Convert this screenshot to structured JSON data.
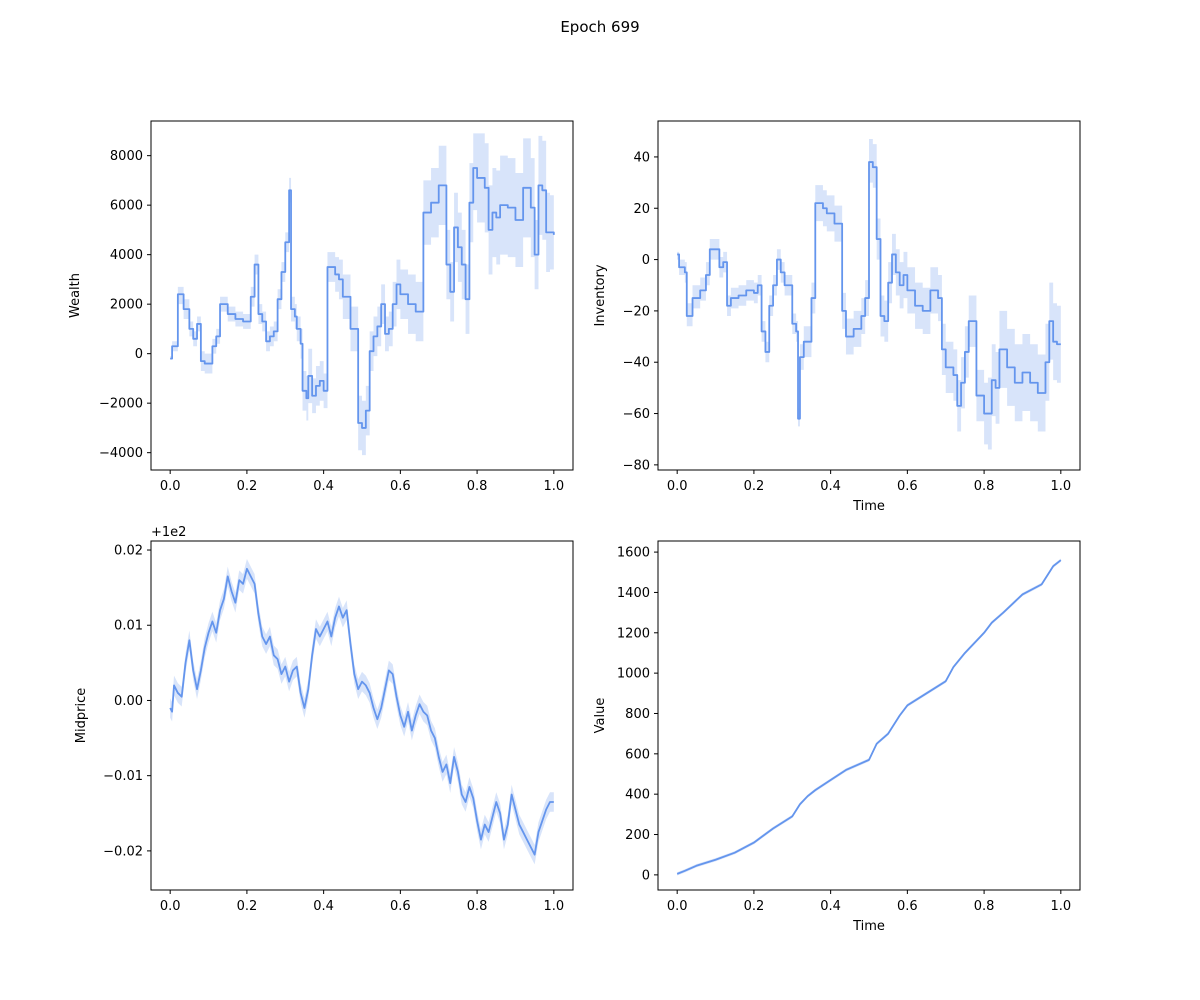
{
  "figure": {
    "suptitle": "Epoch 699",
    "line_color": "#6495ED",
    "band_color": "#6495ED",
    "band_opacity": 0.25
  },
  "chart_data": [
    {
      "type": "line",
      "ylabel": "Wealth",
      "xlabel": "",
      "offset_text": "",
      "xlim": [
        -0.05,
        1.05
      ],
      "ylim": [
        -4700,
        9400
      ],
      "x_ticks": [
        0.0,
        0.2,
        0.4,
        0.6,
        0.8,
        1.0
      ],
      "x_tick_labels": [
        "0.0",
        "0.2",
        "0.4",
        "0.6",
        "0.8",
        "1.0"
      ],
      "y_ticks": [
        -4000,
        -2000,
        0,
        2000,
        4000,
        6000,
        8000
      ],
      "y_tick_labels": [
        "−4000",
        "−2000",
        "0",
        "2000",
        "4000",
        "6000",
        "8000"
      ],
      "grid": false,
      "series": [
        {
          "step": true,
          "x": [
            0.0,
            0.005,
            0.02,
            0.035,
            0.05,
            0.06,
            0.07,
            0.08,
            0.09,
            0.11,
            0.12,
            0.13,
            0.15,
            0.17,
            0.19,
            0.21,
            0.22,
            0.23,
            0.24,
            0.25,
            0.26,
            0.27,
            0.28,
            0.29,
            0.3,
            0.31,
            0.315,
            0.325,
            0.33,
            0.34,
            0.345,
            0.355,
            0.36,
            0.37,
            0.38,
            0.39,
            0.4,
            0.41,
            0.43,
            0.44,
            0.45,
            0.47,
            0.49,
            0.5,
            0.51,
            0.52,
            0.53,
            0.54,
            0.55,
            0.56,
            0.57,
            0.58,
            0.59,
            0.6,
            0.62,
            0.64,
            0.66,
            0.68,
            0.7,
            0.72,
            0.73,
            0.74,
            0.75,
            0.76,
            0.77,
            0.78,
            0.79,
            0.8,
            0.82,
            0.83,
            0.84,
            0.85,
            0.86,
            0.88,
            0.9,
            0.92,
            0.94,
            0.95,
            0.96,
            0.97,
            0.98,
            0.99,
            1.0
          ],
          "y": [
            -200,
            300,
            2400,
            1800,
            1000,
            600,
            1200,
            -300,
            -400,
            300,
            700,
            2000,
            1600,
            1400,
            1300,
            2300,
            3600,
            1600,
            1300,
            500,
            700,
            900,
            2200,
            3300,
            4500,
            6600,
            1800,
            1500,
            1000,
            400,
            -1500,
            -1800,
            -900,
            -1700,
            -1300,
            -1100,
            -1500,
            3500,
            3200,
            3000,
            2300,
            1000,
            -2800,
            -3000,
            -2300,
            100,
            700,
            1100,
            2000,
            800,
            1000,
            2000,
            2800,
            2400,
            2000,
            1700,
            5700,
            6100,
            6800,
            3600,
            2500,
            5100,
            4300,
            3600,
            2200,
            6100,
            7500,
            7100,
            6700,
            5000,
            5700,
            5500,
            6000,
            5900,
            5400,
            6700,
            5900,
            4000,
            6800,
            6600,
            4900,
            4900,
            4800
          ],
          "lower": [
            -200,
            100,
            2000,
            1400,
            700,
            300,
            900,
            -700,
            -800,
            0,
            400,
            1700,
            1300,
            1100,
            1000,
            1900,
            3200,
            1200,
            900,
            100,
            300,
            500,
            1800,
            2900,
            4100,
            6100,
            1300,
            1000,
            500,
            -200,
            -2300,
            -2700,
            -2000,
            -2400,
            -2100,
            -1900,
            -2200,
            2900,
            2500,
            2200,
            1400,
            100,
            -3900,
            -4100,
            -3300,
            -700,
            -100,
            300,
            1200,
            100,
            300,
            1100,
            1800,
            1400,
            800,
            500,
            4400,
            4700,
            5200,
            2200,
            1300,
            3700,
            2900,
            2200,
            800,
            4500,
            5800,
            5300,
            4900,
            3200,
            3900,
            3600,
            4000,
            3900,
            3500,
            4700,
            3900,
            2600,
            4800,
            4600,
            3300,
            3400,
            3300
          ],
          "upper": [
            -100,
            500,
            2700,
            2200,
            1300,
            900,
            1500,
            100,
            0,
            600,
            1000,
            2300,
            1900,
            1700,
            1600,
            2700,
            4000,
            2000,
            1700,
            900,
            1100,
            1300,
            2600,
            3700,
            4900,
            7100,
            2300,
            2000,
            1500,
            1000,
            -700,
            -900,
            200,
            -1000,
            -500,
            -300,
            -800,
            4100,
            3900,
            3800,
            3200,
            1900,
            -1700,
            -1900,
            -1300,
            900,
            1500,
            1900,
            2800,
            1500,
            1700,
            2900,
            3800,
            3400,
            3200,
            2900,
            7000,
            7500,
            8400,
            5000,
            3700,
            6500,
            5700,
            5000,
            3600,
            7700,
            8900,
            8900,
            8500,
            6800,
            7500,
            7400,
            8000,
            7900,
            7300,
            8700,
            7900,
            5400,
            8800,
            8600,
            6500,
            6400,
            6300
          ]
        }
      ]
    },
    {
      "type": "line",
      "ylabel": "Inventory",
      "xlabel": "Time",
      "offset_text": "",
      "xlim": [
        -0.05,
        1.05
      ],
      "ylim": [
        -82,
        54
      ],
      "x_ticks": [
        0.0,
        0.2,
        0.4,
        0.6,
        0.8,
        1.0
      ],
      "x_tick_labels": [
        "0.0",
        "0.2",
        "0.4",
        "0.6",
        "0.8",
        "1.0"
      ],
      "y_ticks": [
        -80,
        -60,
        -40,
        -20,
        0,
        20,
        40
      ],
      "y_tick_labels": [
        "−80",
        "−60",
        "−40",
        "−20",
        "0",
        "20",
        "40"
      ],
      "grid": false,
      "series": [
        {
          "step": true,
          "x": [
            0.0,
            0.005,
            0.02,
            0.025,
            0.04,
            0.06,
            0.075,
            0.085,
            0.09,
            0.11,
            0.12,
            0.13,
            0.14,
            0.16,
            0.18,
            0.2,
            0.21,
            0.22,
            0.23,
            0.24,
            0.25,
            0.26,
            0.27,
            0.28,
            0.3,
            0.31,
            0.315,
            0.32,
            0.33,
            0.35,
            0.36,
            0.38,
            0.39,
            0.41,
            0.43,
            0.44,
            0.46,
            0.48,
            0.49,
            0.5,
            0.51,
            0.52,
            0.53,
            0.54,
            0.55,
            0.56,
            0.57,
            0.58,
            0.59,
            0.6,
            0.62,
            0.64,
            0.66,
            0.68,
            0.69,
            0.7,
            0.72,
            0.73,
            0.74,
            0.75,
            0.76,
            0.78,
            0.8,
            0.81,
            0.82,
            0.83,
            0.84,
            0.86,
            0.88,
            0.9,
            0.92,
            0.94,
            0.96,
            0.97,
            0.98,
            0.99,
            1.0
          ],
          "y": [
            2,
            -3,
            -5,
            -22,
            -15,
            -12,
            -6,
            4,
            4,
            -3,
            -1,
            -18,
            -15,
            -14,
            -12,
            -13,
            -10,
            -28,
            -36,
            -18,
            -10,
            0,
            -5,
            -10,
            -25,
            -28,
            -62,
            -38,
            -32,
            -15,
            22,
            20,
            18,
            14,
            -20,
            -30,
            -27,
            -22,
            -15,
            38,
            36,
            8,
            -22,
            -24,
            -9,
            2,
            -5,
            -10,
            -6,
            -12,
            -18,
            -20,
            -12,
            -15,
            -35,
            -42,
            -45,
            -57,
            -48,
            -36,
            -24,
            -53,
            -60,
            -60,
            -47,
            -50,
            -35,
            -42,
            -48,
            -44,
            -48,
            -52,
            -40,
            -24,
            -32,
            -33,
            -33
          ],
          "lower": [
            0,
            -6,
            -9,
            -26,
            -19,
            -16,
            -10,
            0,
            0,
            -7,
            -5,
            -22,
            -19,
            -18,
            -16,
            -17,
            -14,
            -32,
            -40,
            -22,
            -14,
            -4,
            -9,
            -14,
            -29,
            -32,
            -65,
            -43,
            -38,
            -21,
            15,
            13,
            11,
            7,
            -27,
            -37,
            -34,
            -29,
            -22,
            30,
            28,
            0,
            -30,
            -32,
            -17,
            -6,
            -14,
            -19,
            -15,
            -21,
            -27,
            -29,
            -21,
            -24,
            -45,
            -52,
            -55,
            -67,
            -58,
            -46,
            -34,
            -63,
            -72,
            -74,
            -61,
            -64,
            -50,
            -57,
            -63,
            -59,
            -63,
            -67,
            -55,
            -39,
            -47,
            -48,
            -48
          ],
          "upper": [
            3,
            0,
            -1,
            -17,
            -10,
            -7,
            -1,
            8,
            8,
            1,
            3,
            -14,
            -11,
            -10,
            -8,
            -9,
            -6,
            -24,
            -32,
            -14,
            -6,
            4,
            -1,
            -6,
            -21,
            -24,
            -58,
            -33,
            -26,
            -9,
            29,
            27,
            25,
            21,
            -13,
            -23,
            -20,
            -15,
            -8,
            47,
            45,
            16,
            -14,
            -16,
            -1,
            10,
            4,
            -1,
            3,
            -3,
            -9,
            -11,
            -3,
            -6,
            -25,
            -32,
            -35,
            -47,
            -38,
            -26,
            -14,
            -43,
            -48,
            -46,
            -33,
            -36,
            -20,
            -27,
            -33,
            -29,
            -33,
            -37,
            -25,
            -9,
            -17,
            -18,
            -18
          ]
        }
      ]
    },
    {
      "type": "line",
      "ylabel": "Midprice",
      "xlabel": "",
      "offset_text": "+1e2",
      "xlim": [
        -0.05,
        1.05
      ],
      "ylim": [
        -0.0252,
        0.0212
      ],
      "x_ticks": [
        0.0,
        0.2,
        0.4,
        0.6,
        0.8,
        1.0
      ],
      "x_tick_labels": [
        "0.0",
        "0.2",
        "0.4",
        "0.6",
        "0.8",
        "1.0"
      ],
      "y_ticks": [
        -0.02,
        -0.01,
        0.0,
        0.01,
        0.02
      ],
      "y_tick_labels": [
        "−0.02",
        "−0.01",
        "0.00",
        "0.01",
        "0.02"
      ],
      "grid": false,
      "series": [
        {
          "step": false,
          "band_halfwidth": 0.0013,
          "x": [
            0.0,
            0.005,
            0.01,
            0.02,
            0.03,
            0.04,
            0.05,
            0.06,
            0.07,
            0.08,
            0.09,
            0.1,
            0.11,
            0.12,
            0.13,
            0.14,
            0.15,
            0.16,
            0.17,
            0.18,
            0.19,
            0.2,
            0.21,
            0.22,
            0.23,
            0.24,
            0.25,
            0.26,
            0.27,
            0.28,
            0.29,
            0.3,
            0.31,
            0.32,
            0.33,
            0.34,
            0.35,
            0.36,
            0.37,
            0.38,
            0.39,
            0.4,
            0.41,
            0.42,
            0.43,
            0.44,
            0.45,
            0.46,
            0.47,
            0.48,
            0.49,
            0.5,
            0.51,
            0.52,
            0.53,
            0.54,
            0.55,
            0.56,
            0.57,
            0.58,
            0.59,
            0.6,
            0.61,
            0.62,
            0.63,
            0.64,
            0.65,
            0.66,
            0.67,
            0.68,
            0.69,
            0.7,
            0.71,
            0.72,
            0.73,
            0.74,
            0.75,
            0.76,
            0.77,
            0.78,
            0.79,
            0.8,
            0.81,
            0.82,
            0.83,
            0.84,
            0.85,
            0.86,
            0.87,
            0.88,
            0.89,
            0.9,
            0.91,
            0.92,
            0.93,
            0.94,
            0.95,
            0.96,
            0.97,
            0.98,
            0.99,
            1.0
          ],
          "y": [
            -0.001,
            -0.0015,
            0.002,
            0.001,
            0.0005,
            0.005,
            0.008,
            0.004,
            0.0015,
            0.004,
            0.007,
            0.009,
            0.0105,
            0.009,
            0.012,
            0.0135,
            0.0165,
            0.0145,
            0.013,
            0.016,
            0.0155,
            0.0175,
            0.0165,
            0.0155,
            0.0115,
            0.0085,
            0.0075,
            0.0085,
            0.006,
            0.0055,
            0.0035,
            0.0045,
            0.0025,
            0.004,
            0.0045,
            0.001,
            -0.001,
            0.0015,
            0.006,
            0.0095,
            0.0085,
            0.0095,
            0.0105,
            0.0085,
            0.011,
            0.0125,
            0.011,
            0.012,
            0.0075,
            0.0035,
            0.0015,
            0.0025,
            0.002,
            0.001,
            -0.001,
            -0.0025,
            -0.001,
            0.0015,
            0.004,
            0.0035,
            0.0005,
            -0.002,
            -0.0035,
            -0.0015,
            -0.004,
            -0.002,
            -0.0005,
            -0.0015,
            -0.002,
            -0.004,
            -0.005,
            -0.0075,
            -0.0095,
            -0.0085,
            -0.011,
            -0.0075,
            -0.0095,
            -0.0125,
            -0.0135,
            -0.0115,
            -0.013,
            -0.016,
            -0.0185,
            -0.0165,
            -0.0175,
            -0.0155,
            -0.0135,
            -0.015,
            -0.0185,
            -0.0165,
            -0.0125,
            -0.0145,
            -0.0165,
            -0.0175,
            -0.0185,
            -0.0195,
            -0.0205,
            -0.0175,
            -0.016,
            -0.0145,
            -0.0135,
            -0.0135
          ]
        }
      ]
    },
    {
      "type": "line",
      "ylabel": "Value",
      "xlabel": "Time",
      "offset_text": "",
      "xlim": [
        -0.05,
        1.05
      ],
      "ylim": [
        -75,
        1655
      ],
      "x_ticks": [
        0.0,
        0.2,
        0.4,
        0.6,
        0.8,
        1.0
      ],
      "x_tick_labels": [
        "0.0",
        "0.2",
        "0.4",
        "0.6",
        "0.8",
        "1.0"
      ],
      "y_ticks": [
        0,
        200,
        400,
        600,
        800,
        1000,
        1200,
        1400,
        1600
      ],
      "y_tick_labels": [
        "0",
        "200",
        "400",
        "600",
        "800",
        "1000",
        "1200",
        "1400",
        "1600"
      ],
      "grid": false,
      "series": [
        {
          "step": false,
          "band_halfwidth": 8,
          "x": [
            0.0,
            0.02,
            0.05,
            0.1,
            0.15,
            0.2,
            0.25,
            0.3,
            0.32,
            0.34,
            0.36,
            0.4,
            0.44,
            0.5,
            0.52,
            0.55,
            0.58,
            0.6,
            0.65,
            0.7,
            0.72,
            0.75,
            0.8,
            0.82,
            0.85,
            0.9,
            0.95,
            0.98,
            1.0
          ],
          "y": [
            5,
            20,
            45,
            75,
            110,
            160,
            230,
            290,
            350,
            390,
            420,
            470,
            520,
            570,
            650,
            700,
            790,
            840,
            900,
            960,
            1030,
            1100,
            1200,
            1250,
            1300,
            1390,
            1440,
            1530,
            1560
          ]
        }
      ]
    }
  ]
}
